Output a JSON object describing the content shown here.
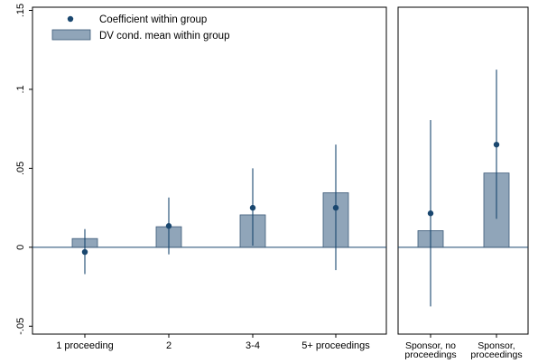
{
  "legend": {
    "coef_label": "Coefficient within group",
    "bar_label": "DV cond. mean within group"
  },
  "chart_data": [
    {
      "type": "bar",
      "panel": "left",
      "categories": [
        "1 proceeding",
        "2",
        "3-4",
        "5+ proceedings"
      ],
      "series": [
        {
          "name": "DV cond. mean within group",
          "type": "bar",
          "values": [
            0.0055,
            0.013,
            0.0205,
            0.0345
          ]
        },
        {
          "name": "Coefficient within group",
          "type": "point",
          "values": [
            -0.003,
            0.0135,
            0.025,
            0.025
          ],
          "ci_low": [
            -0.017,
            -0.0045,
            0.001,
            -0.0145
          ],
          "ci_high": [
            0.0115,
            0.0315,
            0.05,
            0.065
          ]
        }
      ],
      "yticks": [
        -0.05,
        0,
        0.05,
        0.1,
        0.15
      ],
      "ytick_labels": [
        "-.05",
        "0",
        ".05",
        ".1",
        ".15"
      ],
      "ylim": [
        -0.055,
        0.152
      ],
      "grid": false,
      "legend_position": "top-left"
    },
    {
      "type": "bar",
      "panel": "right",
      "categories": [
        [
          "Sponsor, no",
          "proceedings"
        ],
        [
          "Sponsor,",
          "proceedings"
        ]
      ],
      "series": [
        {
          "name": "DV cond. mean within group",
          "type": "bar",
          "values": [
            0.0105,
            0.047
          ]
        },
        {
          "name": "Coefficient within group",
          "type": "point",
          "values": [
            0.0215,
            0.065
          ],
          "ci_low": [
            -0.0375,
            0.018
          ],
          "ci_high": [
            0.0805,
            0.1125
          ]
        }
      ],
      "ylim": [
        -0.055,
        0.152
      ],
      "grid": false
    }
  ]
}
